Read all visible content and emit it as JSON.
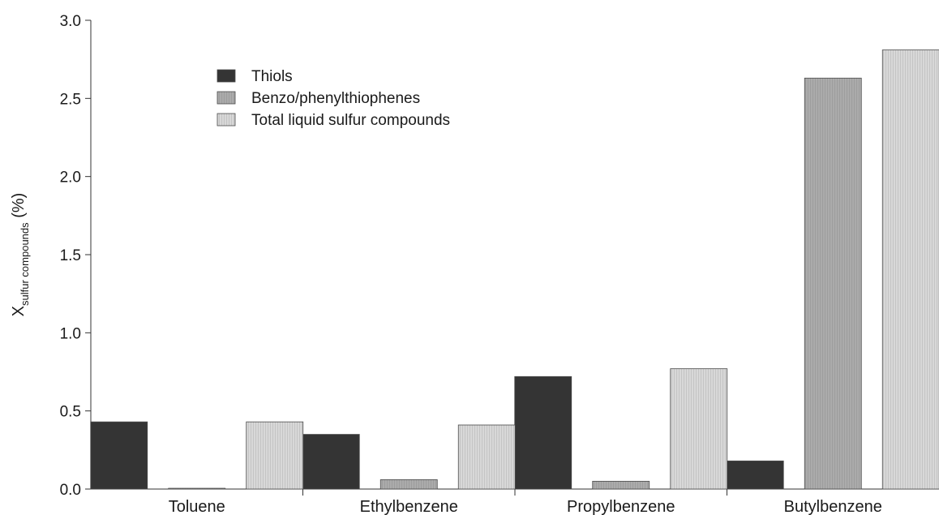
{
  "chart_data": {
    "type": "bar",
    "categories": [
      "Toluene",
      "Ethylbenzene",
      "Propylbenzene",
      "Butylbenzene"
    ],
    "series": [
      {
        "name": "Thiols",
        "values": [
          0.43,
          0.35,
          0.72,
          0.18
        ],
        "color": "#343434"
      },
      {
        "name": "Benzo/phenylthiophenes",
        "values": [
          0.005,
          0.06,
          0.05,
          2.63
        ],
        "color": "#a8a8a8"
      },
      {
        "name": "Total liquid sulfur compounds",
        "values": [
          0.43,
          0.41,
          0.77,
          2.81
        ],
        "color": "#d2d2d2"
      }
    ],
    "ylabel": {
      "main": "X",
      "subscript": "sulfur compounds",
      "suffix": " (%)"
    },
    "ylim": [
      0,
      3.0
    ],
    "yticks": [
      "0.0",
      "0.5",
      "1.0",
      "1.5",
      "2.0",
      "2.5",
      "3.0"
    ],
    "grid": false,
    "legend_position": "top-left"
  }
}
